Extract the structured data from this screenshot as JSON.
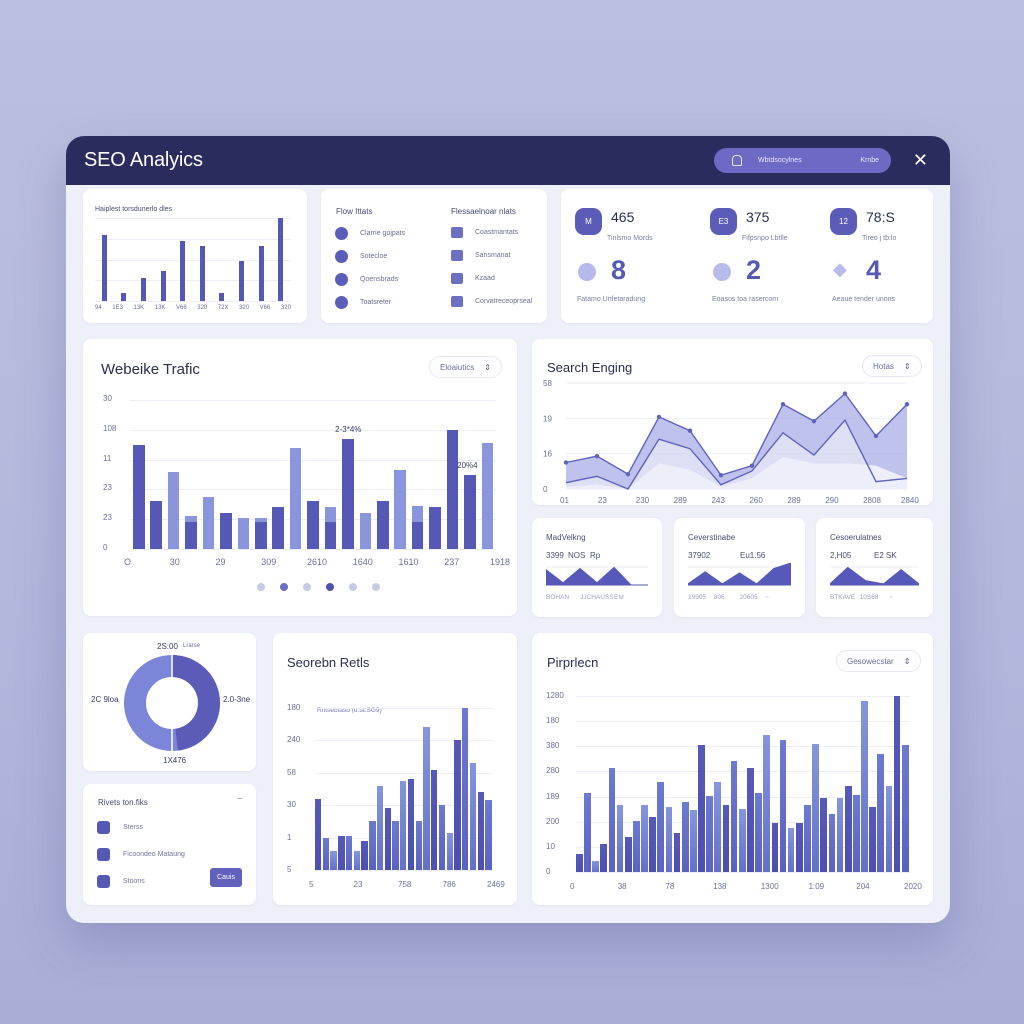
{
  "window": {
    "title": "SEO Analyics",
    "search_pill": {
      "text": "Wbtdsocylnes",
      "right_text": "Krnbe",
      "icon": "search-profile-icon"
    },
    "close_icon": "✕"
  },
  "colors": {
    "background": "#b8bcdd",
    "titlebar": "#2a2c5e",
    "accent": "#5a5cb8",
    "accent_light": "#7f8ad8",
    "accent_pale": "#b7bbea",
    "card": "#ffffff",
    "panel": "#eef0f9"
  },
  "top_left_card": {
    "title": "Haiplest torsdunerlo dles",
    "x_labels": [
      "94",
      "1E3",
      "13K",
      "13K",
      "V66",
      "320",
      "72X",
      "320",
      "V66",
      "320"
    ]
  },
  "flow_card": {
    "left_title": "Flow Ittats",
    "right_title": "Flessaelnoar nlats",
    "left_items": [
      {
        "icon": "info-circle-icon",
        "label": "Clarrie gojpats"
      },
      {
        "icon": "dollar-circle-icon",
        "label": "Sotecloe"
      },
      {
        "icon": "grid-dots-icon",
        "label": "Qoensbrads"
      },
      {
        "icon": "ring-circle-icon",
        "label": "Toatsreter"
      }
    ],
    "right_items": [
      {
        "icon": "folder-icon",
        "label": "Coastmantats"
      },
      {
        "icon": "document-icon",
        "label": "Sansmanat"
      },
      {
        "icon": "wand-icon",
        "label": "Kzaad"
      },
      {
        "icon": "monitor-icon",
        "label": "Corvatreceoprseal"
      }
    ]
  },
  "stats_card": {
    "top": [
      {
        "icon_label": "M",
        "value": "465",
        "label": "Tinlsmo Mords"
      },
      {
        "icon_label": "E3",
        "value": "375",
        "label": "Fifpsnpo Lbtlle"
      },
      {
        "icon_label": "12",
        "value": "78:S",
        "label": "Tireo j tb:lo"
      }
    ],
    "bottom": [
      {
        "value": "8",
        "label": "Fatamo Unfetaradung"
      },
      {
        "value": "2",
        "label": "Eoasos toa rasercom"
      },
      {
        "value": "4",
        "label": "Aeaue tender unons"
      }
    ]
  },
  "website_traffic": {
    "title": "Webeike Trafic",
    "dropdown_label": "Eloaiutics",
    "dropdown_icon": "sort-icon",
    "pager_count": 6,
    "pager_active": [
      1,
      3
    ]
  },
  "search_ranking": {
    "title": "Search Enging",
    "dropdown_label": "Hotas",
    "dropdown_icon": "sort-icon"
  },
  "mini_cards": [
    {
      "title": "MadVelkng",
      "values": [
        "3399",
        "NOS",
        "Rp"
      ],
      "foot": [
        "BOHAN",
        "JJCHAUSS",
        "EM"
      ]
    },
    {
      "title": "Ceverstinabe",
      "values": [
        "37902",
        "Eu1.56"
      ],
      "foot": [
        "19905",
        "806",
        "20605",
        "~"
      ]
    },
    {
      "title": "Cesoerulatnes",
      "values": [
        "2,H05",
        "E2 SK"
      ],
      "foot": [
        "BTKAVE",
        "10S68",
        "~"
      ]
    }
  ],
  "donut": {
    "labels": {
      "top": "2S:00",
      "top_sub": "Lrarse",
      "left": "2C 9loa",
      "right": "2.0-3ne",
      "bottom": "1X476"
    }
  },
  "tasks_card": {
    "title": "Rivets ton.fiks",
    "collapse_icon": "−",
    "items": [
      {
        "icon": "store-icon",
        "label": "Sterss"
      },
      {
        "icon": "link-wand-icon",
        "label": "Ficoondeo Mataung"
      },
      {
        "icon": "refresh-icon",
        "label": "Stoons"
      }
    ],
    "button_label": "Cauis"
  },
  "search_results": {
    "title": "Seorebn Retls",
    "subtitle": "Rntsebtasb (u:ta.SG9)"
  },
  "piprecn": {
    "title": "Pirprlecn",
    "dropdown_label": "Gesowecstar",
    "dropdown_icon": "sort-icon"
  },
  "chart_data": [
    {
      "id": "top_left_bars",
      "type": "bar",
      "title": "Haiplest torsdunerlo dles",
      "categories": [
        "94",
        "1E3",
        "13K",
        "13K",
        "V66",
        "320",
        "72X",
        "320",
        "V66",
        "320"
      ],
      "values": [
        80,
        10,
        28,
        36,
        72,
        66,
        10,
        48,
        66,
        100
      ],
      "ylim": [
        0,
        100
      ],
      "grid": true
    },
    {
      "id": "website_traffic",
      "type": "bar",
      "title": "Webeike Trafic",
      "y_ticks": [
        "0",
        "23",
        "23",
        "11",
        "108",
        "30"
      ],
      "x_labels": [
        "O",
        "30",
        "29",
        "309",
        "2610",
        "1640",
        "1610",
        "237",
        "1918"
      ],
      "annotations": [
        {
          "text": "2-3*4%",
          "bar_index": 12
        },
        {
          "text": "20%4",
          "bar_index": 19
        }
      ],
      "series": [
        {
          "name": "dark",
          "values": [
            70,
            32,
            0,
            18,
            0,
            24,
            0,
            18,
            28,
            0,
            32,
            18,
            74,
            0,
            32,
            0,
            18,
            28,
            80,
            50,
            0
          ]
        },
        {
          "name": "light",
          "values": [
            0,
            0,
            52,
            22,
            35,
            0,
            21,
            21,
            0,
            68,
            0,
            28,
            29,
            24,
            0,
            53,
            29,
            0,
            0,
            0,
            71
          ]
        }
      ],
      "ylim": [
        0,
        100
      ],
      "grid": true
    },
    {
      "id": "search_ranking",
      "type": "area",
      "title": "Search Enging",
      "y_ticks": [
        "0",
        "16",
        "19",
        "58"
      ],
      "x_labels": [
        "01",
        "23",
        "230",
        "289",
        "243",
        "260",
        "289",
        "290",
        "2808",
        "2840"
      ],
      "series": [
        {
          "name": "upper",
          "values": [
            25,
            31,
            14,
            68,
            55,
            13,
            22,
            80,
            64,
            90,
            50,
            80
          ]
        },
        {
          "name": "middle",
          "values": [
            6,
            12,
            0,
            47,
            38,
            4,
            17,
            53,
            32,
            65,
            7,
            10
          ]
        },
        {
          "name": "lower",
          "values": [
            2,
            4,
            0,
            24,
            18,
            2,
            10,
            30,
            24,
            24,
            22,
            10
          ]
        }
      ],
      "ylim": [
        0,
        100
      ],
      "grid": true
    },
    {
      "id": "mini_madvelkng",
      "type": "area",
      "values": [
        70,
        10,
        75,
        10,
        80,
        0,
        0
      ]
    },
    {
      "id": "mini_ceverstinabe",
      "type": "area",
      "values": [
        5,
        60,
        5,
        55,
        5,
        75,
        100
      ]
    },
    {
      "id": "mini_cesoerulatnes",
      "type": "area",
      "values": [
        5,
        80,
        20,
        5,
        70,
        5
      ]
    },
    {
      "id": "donut",
      "type": "pie",
      "labels": [
        "2C 9loa",
        "2.0-3ne"
      ],
      "values": [
        52,
        48
      ],
      "hole": 0.55
    },
    {
      "id": "search_results",
      "type": "bar",
      "title": "Seorebn Retls",
      "y_ticks": [
        "5",
        "1",
        "30",
        "58",
        "240",
        "180"
      ],
      "x_labels": [
        "5",
        "23",
        "758",
        "786",
        "2469"
      ],
      "values": [
        44,
        20,
        12,
        21,
        21,
        12,
        18,
        30,
        52,
        38,
        30,
        55,
        56,
        30,
        88,
        62,
        40,
        23,
        80,
        100,
        66,
        48,
        43
      ],
      "ylim": [
        0,
        100
      ],
      "grid": true
    },
    {
      "id": "piprecn",
      "type": "bar",
      "title": "Pirprlecn",
      "y_ticks": [
        "0",
        "10",
        "200",
        "189",
        "280",
        "380",
        "180",
        "1280"
      ],
      "x_labels": [
        "0",
        "38",
        "78",
        "138",
        "1300",
        "1:09",
        "204",
        "2020"
      ],
      "values": [
        10,
        45,
        6,
        16,
        59,
        38,
        20,
        29,
        38,
        31,
        51,
        37,
        22,
        40,
        35,
        72,
        43,
        51,
        38,
        63,
        36,
        59,
        45,
        78,
        28,
        75,
        25,
        28,
        38,
        73,
        42,
        33,
        42,
        49,
        44,
        97,
        37,
        67,
        49,
        100,
        72
      ],
      "ylim": [
        0,
        100
      ],
      "grid": true
    }
  ]
}
